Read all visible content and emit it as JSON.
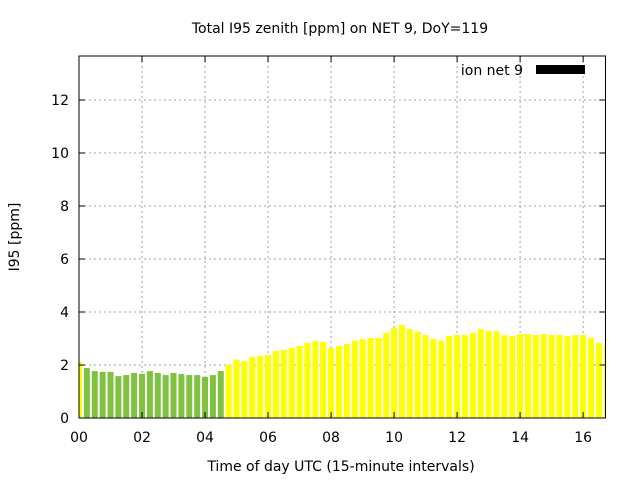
{
  "chart_data": {
    "type": "bar",
    "title": "Total I95 zenith [ppm] on NET 9, DoY=119",
    "xlabel": "Time of day UTC (15-minute intervals)",
    "ylabel": "I95 [ppm]",
    "xlim": [
      0,
      16.71
    ],
    "ylim": [
      0,
      13.66
    ],
    "xticks": [
      0,
      2,
      4,
      6,
      8,
      10,
      12,
      14,
      16
    ],
    "xtick_labels": [
      "00",
      "02",
      "04",
      "06",
      "08",
      "10",
      "12",
      "14",
      "16"
    ],
    "yticks": [
      0,
      2,
      4,
      6,
      8,
      10,
      12
    ],
    "ytick_labels": [
      "0",
      "2",
      "4",
      "6",
      "8",
      "10",
      "12"
    ],
    "grid": true,
    "legend": {
      "label": "ion net 9",
      "placement": "top-right",
      "color": "#000000"
    },
    "colors": {
      "green": "#7fc241",
      "yellow": "#ffff00"
    },
    "x_hours": [
      0,
      0.25,
      0.5,
      0.75,
      1,
      1.25,
      1.5,
      1.75,
      2,
      2.25,
      2.5,
      2.75,
      3,
      3.25,
      3.5,
      3.75,
      4,
      4.25,
      4.5,
      4.75,
      5,
      5.25,
      5.5,
      5.75,
      6,
      6.25,
      6.5,
      6.75,
      7,
      7.25,
      7.5,
      7.75,
      8,
      8.25,
      8.5,
      8.75,
      9,
      9.25,
      9.5,
      9.75,
      10,
      10.25,
      10.5,
      10.75,
      11,
      11.25,
      11.5,
      11.75,
      12,
      12.25,
      12.5,
      12.75,
      13,
      13.25,
      13.5,
      13.75,
      14,
      14.25,
      14.5,
      14.75,
      15,
      15.25,
      15.5,
      15.75,
      16,
      16.25,
      16.5,
      16.75
    ],
    "values": [
      2.11,
      1.89,
      1.77,
      1.74,
      1.74,
      1.58,
      1.62,
      1.7,
      1.66,
      1.77,
      1.7,
      1.62,
      1.7,
      1.66,
      1.62,
      1.62,
      1.55,
      1.62,
      1.77,
      2.0,
      2.19,
      2.15,
      2.3,
      2.34,
      2.38,
      2.53,
      2.57,
      2.64,
      2.72,
      2.83,
      2.91,
      2.87,
      2.64,
      2.72,
      2.79,
      2.91,
      2.98,
      3.02,
      3.02,
      3.21,
      3.4,
      3.51,
      3.36,
      3.25,
      3.13,
      2.98,
      2.91,
      3.09,
      3.13,
      3.13,
      3.21,
      3.36,
      3.28,
      3.28,
      3.13,
      3.09,
      3.17,
      3.17,
      3.13,
      3.17,
      3.13,
      3.13,
      3.09,
      3.13,
      3.13,
      3.02,
      2.83,
      2.75
    ],
    "bar_colors": [
      "yellow",
      "green",
      "green",
      "green",
      "green",
      "green",
      "green",
      "green",
      "green",
      "green",
      "green",
      "green",
      "green",
      "green",
      "green",
      "green",
      "green",
      "green",
      "green",
      "yellow",
      "yellow",
      "yellow",
      "yellow",
      "yellow",
      "yellow",
      "yellow",
      "yellow",
      "yellow",
      "yellow",
      "yellow",
      "yellow",
      "yellow",
      "yellow",
      "yellow",
      "yellow",
      "yellow",
      "yellow",
      "yellow",
      "yellow",
      "yellow",
      "yellow",
      "yellow",
      "yellow",
      "yellow",
      "yellow",
      "yellow",
      "yellow",
      "yellow",
      "yellow",
      "yellow",
      "yellow",
      "yellow",
      "yellow",
      "yellow",
      "yellow",
      "yellow",
      "yellow",
      "yellow",
      "yellow",
      "yellow",
      "yellow",
      "yellow",
      "yellow",
      "yellow",
      "yellow",
      "yellow",
      "yellow",
      "yellow"
    ]
  }
}
